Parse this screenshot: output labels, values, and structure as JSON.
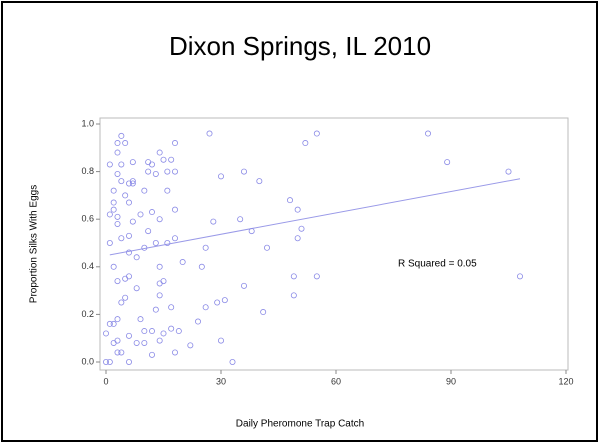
{
  "chart_data": {
    "type": "scatter",
    "title": "Dixon Springs, IL 2010",
    "xlabel": "Daily Pheromone Trap Catch",
    "ylabel": "Proportion Silks With Eggs",
    "annotation": "R Squared = 0.05",
    "color": "#8a8ae6",
    "xlim": [
      0,
      120
    ],
    "xticks": [
      0,
      30,
      60,
      90,
      120
    ],
    "ylim": [
      0,
      1
    ],
    "yticks": [
      {
        "value": 0,
        "label": "0.0"
      },
      0.2,
      0.4,
      0.6,
      0.8,
      {
        "value": 1,
        "label": "1.0"
      }
    ],
    "trend_line": {
      "color": "#9a9ae8",
      "x": [
        1,
        108
      ],
      "y": [
        0.45,
        0.77
      ]
    },
    "x": [
      0,
      1,
      0,
      1,
      1,
      1,
      1,
      2,
      2,
      2,
      2,
      2,
      2,
      3,
      3,
      3,
      3,
      3,
      3,
      3,
      3,
      3,
      4,
      4,
      4,
      4,
      4,
      4,
      5,
      5,
      5,
      5,
      6,
      6,
      6,
      6,
      6,
      6,
      6,
      7,
      7,
      7,
      7,
      8,
      8,
      8,
      9,
      9,
      10,
      10,
      10,
      10,
      11,
      11,
      11,
      12,
      12,
      12,
      12,
      13,
      13,
      13,
      14,
      14,
      14,
      14,
      14,
      14,
      15,
      15,
      15,
      16,
      16,
      16,
      17,
      17,
      17,
      18,
      18,
      18,
      18,
      18,
      19,
      20,
      22,
      24,
      25,
      26,
      26,
      27,
      28,
      29,
      30,
      30,
      31,
      33,
      35,
      36,
      36,
      38,
      40,
      41,
      42,
      48,
      49,
      49,
      50,
      50,
      51,
      52,
      55,
      55,
      84,
      89,
      105,
      108
    ],
    "y": [
      0,
      0,
      0.12,
      0.16,
      0.5,
      0.62,
      0.83,
      0.64,
      0.67,
      0.4,
      0.08,
      0.16,
      0.72,
      0.04,
      0.09,
      0.18,
      0.34,
      0.58,
      0.61,
      0.79,
      0.88,
      0.92,
      0.95,
      0.04,
      0.25,
      0.52,
      0.76,
      0.83,
      0.27,
      0.35,
      0.92,
      0.7,
      0,
      0.11,
      0.36,
      0.46,
      0.53,
      0.67,
      0.75,
      0.75,
      0.76,
      0.84,
      0.59,
      0.08,
      0.31,
      0.44,
      0.62,
      0.18,
      0.13,
      0.08,
      0.48,
      0.72,
      0.84,
      0.55,
      0.8,
      0.03,
      0.13,
      0.63,
      0.83,
      0.22,
      0.5,
      0.79,
      0.09,
      0.28,
      0.33,
      0.4,
      0.6,
      0.88,
      0.12,
      0.34,
      0.85,
      0.5,
      0.72,
      0.8,
      0.14,
      0.23,
      0.85,
      0.04,
      0.52,
      0.64,
      0.8,
      0.92,
      0.13,
      0.42,
      0.07,
      0.17,
      0.4,
      0.23,
      0.48,
      0.96,
      0.59,
      0.25,
      0.09,
      0.78,
      0.26,
      0,
      0.6,
      0.32,
      0.8,
      0.55,
      0.76,
      0.21,
      0.48,
      0.68,
      0.36,
      0.28,
      0.52,
      0.64,
      0.56,
      0.92,
      0.96,
      0.36,
      0.96,
      0.84,
      0.8,
      0.36
    ]
  }
}
